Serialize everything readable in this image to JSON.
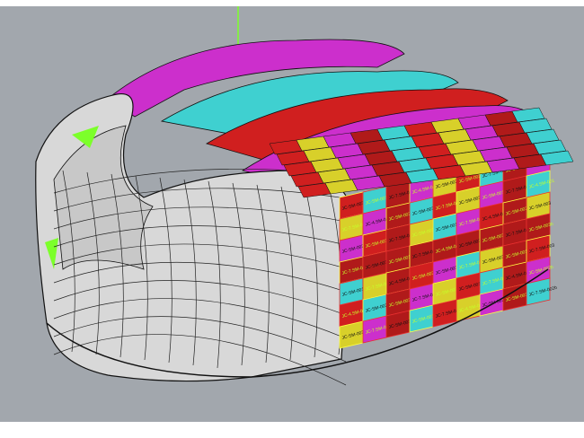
{
  "viewport": {
    "background": "#a2a7ad",
    "shell_color": "#d8d8d8",
    "edge_color": "#111111",
    "axis_color": "#7cff2a"
  },
  "panels": {
    "palette": [
      "#d01f1f",
      "#cc2fcc",
      "#3fd0d0",
      "#d8d02a",
      "#b01a1a"
    ],
    "label_colors": [
      "#111111",
      "#c6ff2a"
    ],
    "labels": [
      "JC-SM-003b",
      "JC-SM-001",
      "JC-7.SM-003",
      "JC-4.SM-001",
      "JC-SM-002b",
      "JC-SM-003",
      "JC-7.SM-002b"
    ]
  }
}
